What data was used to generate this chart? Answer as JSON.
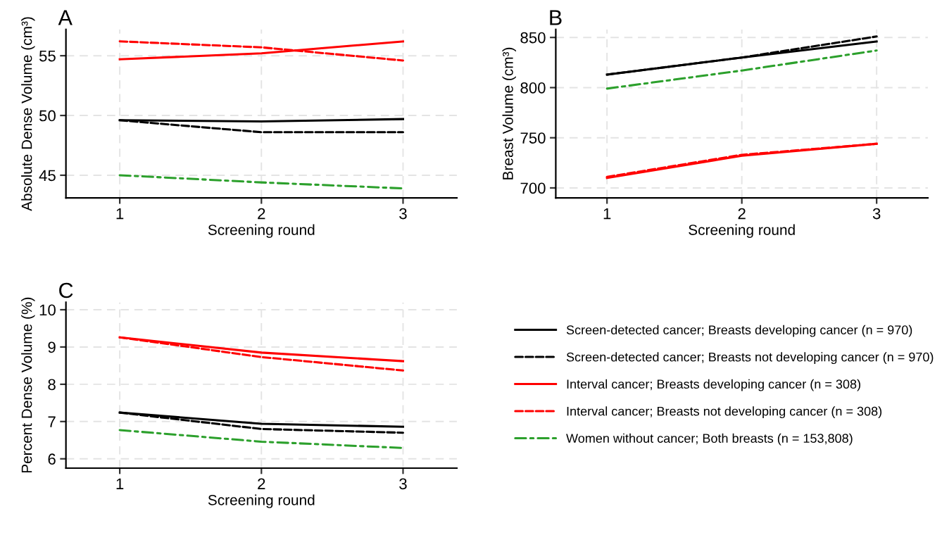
{
  "chart_data": [
    {
      "type": "line",
      "title": "A",
      "xlabel": "Screening round",
      "ylabel": "Absolute Dense Volume (cm³)",
      "x": [
        1,
        2,
        3
      ],
      "xlim": [
        0.62,
        3.38
      ],
      "xticks": [
        1,
        2,
        3
      ],
      "ylim": [
        43.1,
        57.2
      ],
      "yticks": [
        45,
        50,
        55
      ],
      "grid": true,
      "legend": false,
      "series": [
        {
          "color": "#000000",
          "line_style": "solid",
          "values": [
            49.6,
            49.5,
            49.7
          ]
        },
        {
          "color": "#000000",
          "line_style": "dashed",
          "values": [
            49.6,
            48.6,
            48.6
          ]
        },
        {
          "color": "#ff0000",
          "line_style": "solid",
          "values": [
            54.7,
            55.2,
            56.2
          ]
        },
        {
          "color": "#ff0000",
          "line_style": "dashed",
          "values": [
            56.2,
            55.7,
            54.6
          ]
        },
        {
          "color": "#2ca02c",
          "line_style": "dashdot",
          "values": [
            45.0,
            44.4,
            43.9
          ]
        }
      ]
    },
    {
      "type": "line",
      "title": "B",
      "xlabel": "Screening round",
      "ylabel": "Breast Volume (cm³)",
      "x": [
        1,
        2,
        3
      ],
      "xlim": [
        0.62,
        3.38
      ],
      "xticks": [
        1,
        2,
        3
      ],
      "ylim": [
        690,
        858
      ],
      "yticks": [
        700,
        750,
        800,
        850
      ],
      "grid": true,
      "legend": false,
      "series": [
        {
          "color": "#000000",
          "line_style": "solid",
          "values": [
            813,
            830,
            846
          ]
        },
        {
          "color": "#000000",
          "line_style": "dashed",
          "values": [
            813,
            830,
            851
          ]
        },
        {
          "color": "#ff0000",
          "line_style": "solid",
          "values": [
            710,
            732,
            744
          ]
        },
        {
          "color": "#ff0000",
          "line_style": "dashed",
          "values": [
            711,
            733,
            744
          ]
        },
        {
          "color": "#2ca02c",
          "line_style": "dashdot",
          "values": [
            799,
            817,
            837
          ]
        }
      ]
    },
    {
      "type": "line",
      "title": "C",
      "xlabel": "Screening round",
      "ylabel": "Percent Dense Volume (%)",
      "x": [
        1,
        2,
        3
      ],
      "xlim": [
        0.62,
        3.38
      ],
      "xticks": [
        1,
        2,
        3
      ],
      "ylim": [
        5.75,
        10.2
      ],
      "yticks": [
        6,
        7,
        8,
        9,
        10
      ],
      "grid": true,
      "legend": "right",
      "series": [
        {
          "name": "Screen-detected cancer; Breasts developing cancer (n = 970)",
          "color": "#000000",
          "line_style": "solid",
          "values": [
            7.24,
            6.94,
            6.86
          ]
        },
        {
          "name": "Screen-detected cancer; Breasts not developing cancer (n = 970)",
          "color": "#000000",
          "line_style": "dashed",
          "values": [
            7.24,
            6.8,
            6.7
          ]
        },
        {
          "name": "Interval cancer; Breasts developing cancer (n = 308)",
          "color": "#ff0000",
          "line_style": "solid",
          "values": [
            9.26,
            8.85,
            8.62
          ]
        },
        {
          "name": "Interval cancer; Breasts not developing cancer (n = 308)",
          "color": "#ff0000",
          "line_style": "dashed",
          "values": [
            9.26,
            8.73,
            8.37
          ]
        },
        {
          "name": "Women without cancer; Both breasts (n = 153,808)",
          "color": "#2ca02c",
          "line_style": "dashdot",
          "values": [
            6.77,
            6.46,
            6.29
          ]
        }
      ]
    }
  ]
}
